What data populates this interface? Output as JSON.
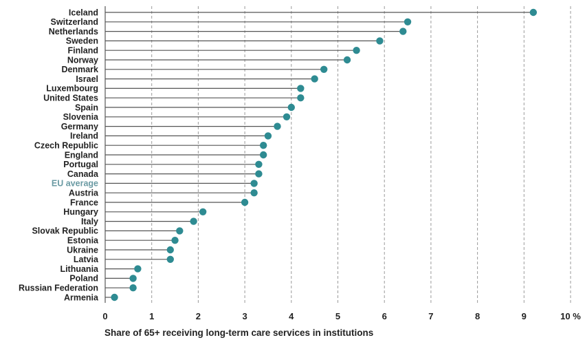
{
  "chart_data": {
    "type": "scatter",
    "style": "lollipop-horizontal",
    "xlabel": "Share of 65+ receiving long-term care services in institutions",
    "x_unit": "%",
    "xlim": [
      0,
      10
    ],
    "x_ticks": [
      0,
      1,
      2,
      3,
      4,
      5,
      6,
      7,
      8,
      9,
      10
    ],
    "grid": "vertical dashed",
    "highlight_category": "EU average",
    "colors": {
      "dot": "#2e8b92",
      "stem": "#555555",
      "grid": "#999999",
      "highlight_label": "#6a9aa3"
    },
    "categories": [
      "Iceland",
      "Switzerland",
      "Netherlands",
      "Sweden",
      "Finland",
      "Norway",
      "Denmark",
      "Israel",
      "Luxembourg",
      "United States",
      "Spain",
      "Slovenia",
      "Germany",
      "Ireland",
      "Czech Republic",
      "England",
      "Portugal",
      "Canada",
      "EU average",
      "Austria",
      "France",
      "Hungary",
      "Italy",
      "Slovak Republic",
      "Estonia",
      "Ukraine",
      "Latvia",
      "Lithuania",
      "Poland",
      "Russian Federation",
      "Armenia"
    ],
    "values": [
      9.2,
      6.5,
      6.4,
      5.9,
      5.4,
      5.2,
      4.7,
      4.5,
      4.2,
      4.2,
      4.0,
      3.9,
      3.7,
      3.5,
      3.4,
      3.4,
      3.3,
      3.3,
      3.2,
      3.2,
      3.0,
      2.1,
      1.9,
      1.6,
      1.5,
      1.4,
      1.4,
      0.7,
      0.6,
      0.6,
      0.2
    ]
  }
}
